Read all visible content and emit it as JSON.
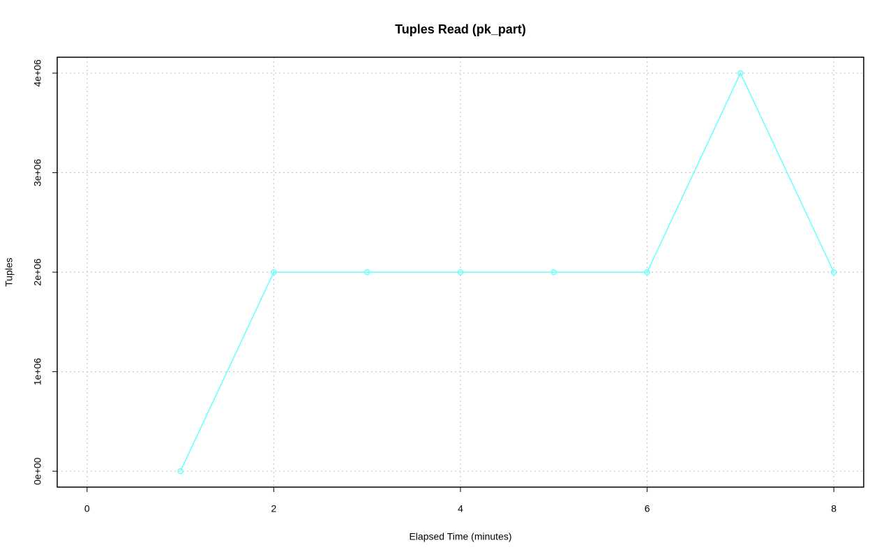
{
  "chart_data": {
    "type": "line",
    "title": "Tuples Read (pk_part)",
    "x_label": "Elapsed Time (minutes)",
    "y_label": "Tuples",
    "x": [
      1,
      2,
      3,
      4,
      5,
      6,
      7,
      8
    ],
    "values": [
      0,
      2000000,
      2000000,
      2000000,
      2000000,
      2000000,
      4000000,
      2000000
    ],
    "color": "#66ffff",
    "xlim": [
      -0.32,
      8.32
    ],
    "xticks": [
      0,
      2,
      4,
      6,
      8
    ],
    "ylim": [
      -160000,
      4160000
    ],
    "yticks": [
      {
        "value": 0,
        "label": "0e+00"
      },
      {
        "value": 1000000,
        "label": "1e+06"
      },
      {
        "value": 2000000,
        "label": "2e+06"
      },
      {
        "value": 3000000,
        "label": "3e+06"
      },
      {
        "value": 4000000,
        "label": "4e+06"
      }
    ],
    "grid": true
  }
}
